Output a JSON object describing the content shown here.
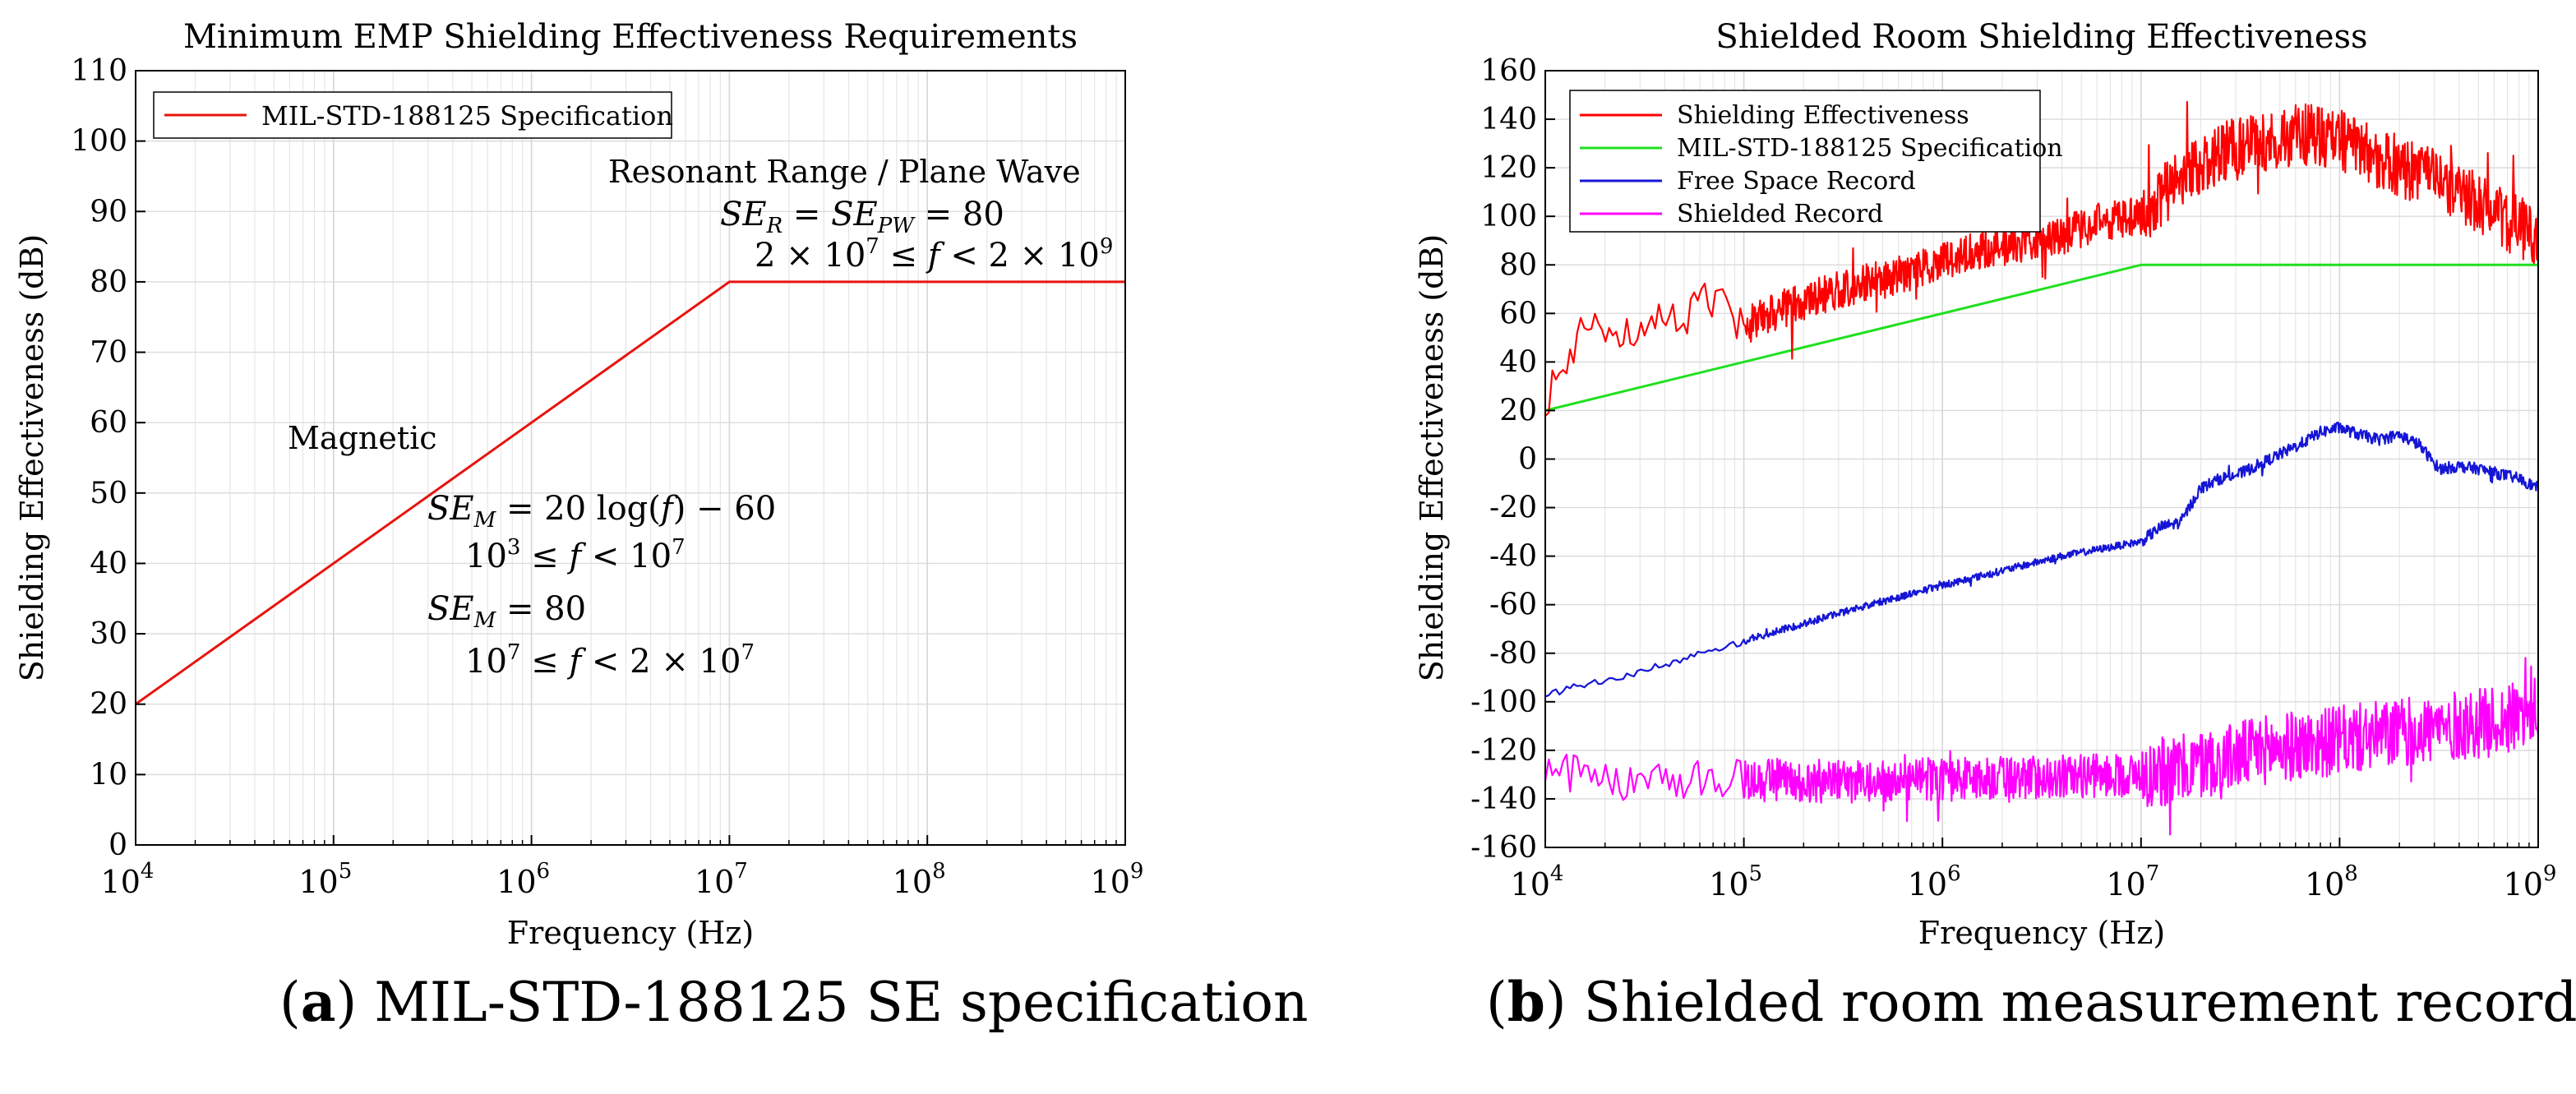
{
  "figure": {
    "caption_a_label": "a",
    "caption_a_text": "MIL-STD-188125 SE specification",
    "caption_b_label": "b",
    "caption_b_text": "Shielded room measurement record"
  },
  "chart_data": [
    {
      "type": "line",
      "title": "Minimum EMP Shielding Effectiveness Requirements",
      "xlabel": "Frequency (Hz)",
      "ylabel": "Shielding Effectiveness (dB)",
      "xscale": "log",
      "xlim": [
        10000,
        1000000000
      ],
      "ylim": [
        0,
        110
      ],
      "grid": true,
      "legend_position": "top-left",
      "xtick_labels": [
        "10^4",
        "10^5",
        "10^6",
        "10^7",
        "10^8",
        "10^9"
      ],
      "ytick_labels": [
        "0",
        "10",
        "20",
        "30",
        "40",
        "50",
        "60",
        "70",
        "80",
        "90",
        "100",
        "110"
      ],
      "series": [
        {
          "name": "MIL-STD-188125 Specification",
          "color": "#e8140e",
          "x": [
            10000,
            10000000,
            1000000000
          ],
          "y": [
            20,
            80,
            80
          ]
        }
      ],
      "annotations": {
        "magnetic": "Magnetic",
        "magnetic_eq1": "SE_M = 20 log(f) − 60",
        "magnetic_range1": "10^3 ≤ f < 10^7",
        "magnetic_eq2": "SE_M = 80",
        "magnetic_range2": "10^7 ≤ f < 2 × 10^7",
        "resonant": "Resonant Range / Plane Wave",
        "resonant_eq": "SE_R = SE_PW = 80",
        "resonant_range": "2 × 10^7 ≤ f < 2 × 10^9"
      }
    },
    {
      "type": "line",
      "title": "Shielded Room Shielding Effectiveness",
      "xlabel": "Frequency (Hz)",
      "ylabel": "Shielding Effectiveness (dB)",
      "xscale": "log",
      "xlim": [
        10000,
        1000000000
      ],
      "ylim": [
        -160,
        160
      ],
      "grid": true,
      "legend_position": "top-left",
      "xtick_labels": [
        "10^4",
        "10^5",
        "10^6",
        "10^7",
        "10^8",
        "10^9"
      ],
      "ytick_labels": [
        "-160",
        "-140",
        "-120",
        "-100",
        "-80",
        "-60",
        "-40",
        "-20",
        "0",
        "20",
        "40",
        "60",
        "80",
        "100",
        "120",
        "140",
        "160"
      ],
      "series": [
        {
          "name": "Shielding Effectiveness",
          "color": "#ff0000",
          "log10_x": [
            4.0,
            4.1,
            4.2,
            4.3,
            4.4,
            4.5,
            4.6,
            4.7,
            4.8,
            4.9,
            5.0,
            5.2,
            5.4,
            5.6,
            5.8,
            6.0,
            6.2,
            6.4,
            6.6,
            6.8,
            7.0,
            7.2,
            7.4,
            7.6,
            7.8,
            8.0,
            8.2,
            8.4,
            8.6,
            8.8,
            9.0
          ],
          "y": [
            24,
            38,
            60,
            44,
            55,
            47,
            60,
            57,
            65,
            62,
            55,
            62,
            68,
            72,
            76,
            82,
            86,
            89,
            92,
            98,
            100,
            116,
            126,
            130,
            134,
            132,
            124,
            118,
            110,
            100,
            92
          ],
          "noise_amplitude_db": 8
        },
        {
          "name": "MIL-STD-188125 Specification",
          "color": "#1fe01f",
          "log10_x": [
            4.0,
            7.0,
            9.0
          ],
          "y": [
            20,
            80,
            80
          ]
        },
        {
          "name": "Free Space Record",
          "color": "#1515d6",
          "log10_x": [
            4.0,
            4.5,
            5.0,
            5.5,
            6.0,
            6.3,
            6.6,
            6.8,
            7.0,
            7.1,
            7.2,
            7.3,
            7.4,
            7.5,
            7.6,
            7.7,
            7.8,
            7.9,
            8.0,
            8.1,
            8.2,
            8.3,
            8.4,
            8.5,
            8.6,
            8.7,
            8.8,
            8.9,
            9.0
          ],
          "y": [
            -97,
            -87,
            -75,
            -63,
            -52,
            -46,
            -40,
            -37,
            -34,
            -28,
            -26,
            -12,
            -8,
            -6,
            -2,
            2,
            6,
            11,
            13,
            10,
            8,
            10,
            6,
            -4,
            -3,
            -4,
            -6,
            -8,
            -12
          ],
          "noise_amplitude_db": 1.5
        },
        {
          "name": "Shielded Record",
          "color": "#ff00ff",
          "log10_x": [
            4.0,
            4.5,
            5.0,
            5.5,
            6.0,
            6.5,
            7.0,
            7.2,
            7.4,
            7.6,
            7.8,
            8.0,
            8.2,
            8.4,
            8.6,
            8.8,
            9.0
          ],
          "y": [
            -128,
            -134,
            -132,
            -133,
            -132,
            -131,
            -130,
            -128,
            -124,
            -120,
            -118,
            -116,
            -114,
            -112,
            -110,
            -108,
            -104
          ],
          "noise_amplitude_db": 9
        }
      ]
    }
  ]
}
